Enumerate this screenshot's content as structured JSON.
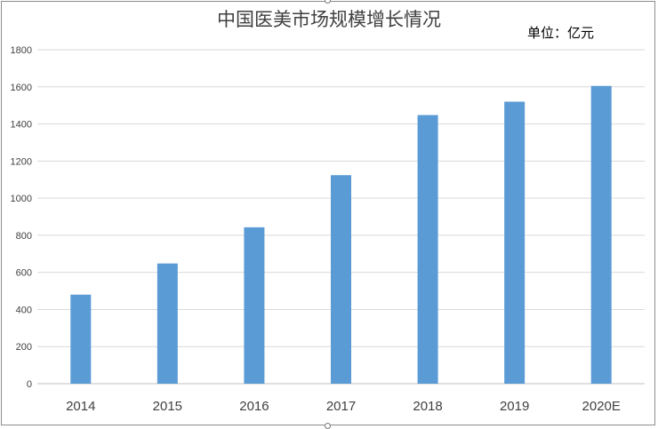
{
  "chart_data": {
    "type": "bar",
    "title": "中国医美市场规模增长情况",
    "unit_label": "单位：亿元",
    "categories": [
      "2014",
      "2015",
      "2016",
      "2017",
      "2018",
      "2019",
      "2020E"
    ],
    "series": [
      {
        "values": [
          480,
          648,
          843,
          1124,
          1448,
          1520,
          1605
        ]
      }
    ],
    "ylim": [
      0,
      1800
    ],
    "yticks": [
      0,
      200,
      400,
      600,
      800,
      1000,
      1200,
      1400,
      1600,
      1800
    ],
    "grid": true,
    "legend": "none",
    "colors": {
      "bar": "#5b9bd5",
      "grid": "#d9d9d9",
      "tick_text": "#404040",
      "axis": "#bfbfbf"
    }
  }
}
